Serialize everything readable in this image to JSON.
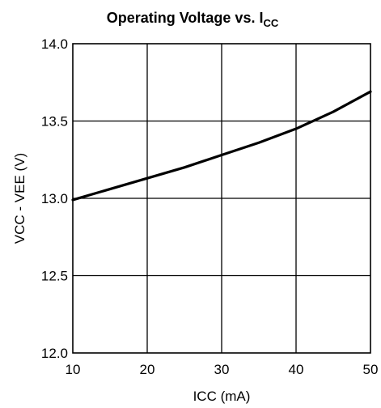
{
  "chart_data": {
    "type": "line",
    "title": {
      "main": "Operating Voltage vs. I",
      "subscript": "CC"
    },
    "xlabel": "ICC (mA)",
    "ylabel": "VCC - VEE (V)",
    "xlim": [
      10,
      50
    ],
    "ylim": [
      12.0,
      14.0
    ],
    "xticks": [
      "10",
      "20",
      "30",
      "40",
      "50"
    ],
    "yticks": [
      "12.0",
      "12.5",
      "13.0",
      "13.5",
      "14.0"
    ],
    "grid": true,
    "line_color": "#000000",
    "series": [
      {
        "x": [
          10,
          15,
          20,
          25,
          30,
          35,
          40,
          45,
          50
        ],
        "y": [
          12.99,
          13.06,
          13.13,
          13.2,
          13.28,
          13.36,
          13.45,
          13.56,
          13.69
        ]
      }
    ]
  }
}
